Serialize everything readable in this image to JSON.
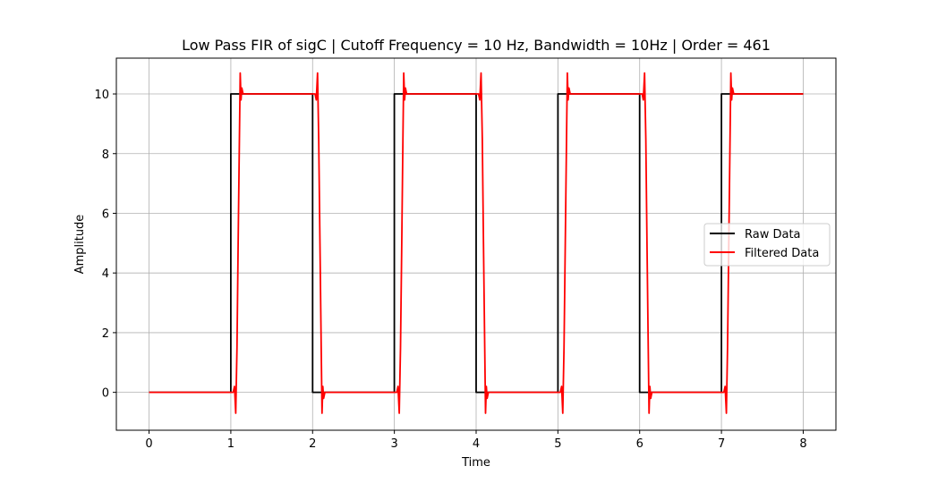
{
  "chart_data": {
    "type": "line",
    "title": "Low Pass FIR of sigC | Cutoff Frequency = 10 Hz, Bandwidth = 10Hz | Order = 461",
    "xlabel": "Time",
    "ylabel": "Amplitude",
    "xlim": [
      -0.4,
      8.4
    ],
    "ylim": [
      -1.27,
      11.2
    ],
    "xticks": [
      0,
      1,
      2,
      3,
      4,
      5,
      6,
      7,
      8
    ],
    "xtick_labels": [
      "0",
      "1",
      "2",
      "3",
      "4",
      "5",
      "6",
      "7",
      "8"
    ],
    "yticks": [
      0,
      2,
      4,
      6,
      8,
      10
    ],
    "ytick_labels": [
      "0",
      "2",
      "4",
      "6",
      "8",
      "10"
    ],
    "grid": true,
    "legend_position": "center-right",
    "series": [
      {
        "name": "Raw Data",
        "color": "#000000",
        "x": [
          0,
          1,
          1,
          2,
          2,
          3,
          3,
          4,
          4,
          5,
          5,
          6,
          6,
          7,
          7,
          8
        ],
        "y": [
          0,
          0,
          10,
          10,
          0,
          0,
          10,
          10,
          0,
          0,
          10,
          10,
          0,
          0,
          10,
          10
        ]
      },
      {
        "name": "Filtered Data",
        "color": "#ff0000",
        "x": [
          0,
          1.0,
          1.03,
          1.045,
          1.06,
          1.075,
          1.09,
          1.105,
          1.115,
          1.125,
          1.135,
          1.15,
          2.0,
          2.03,
          2.045,
          2.06,
          2.075,
          2.09,
          2.105,
          2.115,
          2.125,
          2.135,
          2.15,
          3.0,
          3.03,
          3.045,
          3.06,
          3.075,
          3.09,
          3.105,
          3.115,
          3.125,
          3.135,
          3.15,
          4.0,
          4.03,
          4.045,
          4.06,
          4.075,
          4.09,
          4.105,
          4.115,
          4.125,
          4.135,
          4.15,
          5.0,
          5.03,
          5.045,
          5.06,
          5.075,
          5.09,
          5.105,
          5.115,
          5.125,
          5.135,
          5.15,
          6.0,
          6.03,
          6.045,
          6.06,
          6.075,
          6.09,
          6.105,
          6.115,
          6.125,
          6.135,
          6.15,
          7.0,
          7.03,
          7.045,
          7.06,
          7.075,
          7.09,
          7.105,
          7.115,
          7.125,
          7.135,
          7.15,
          8.0
        ],
        "y": [
          0,
          0,
          0.0,
          0.2,
          -0.7,
          1.5,
          5.0,
          8.5,
          10.7,
          9.8,
          10.2,
          10,
          10,
          10.0,
          9.8,
          10.7,
          8.5,
          5.0,
          1.5,
          -0.7,
          0.2,
          -0.2,
          0,
          0,
          0.0,
          0.2,
          -0.7,
          1.5,
          5.0,
          8.5,
          10.7,
          9.8,
          10.2,
          10,
          10,
          10.0,
          9.8,
          10.7,
          8.5,
          5.0,
          1.5,
          -0.7,
          0.2,
          -0.2,
          0,
          0,
          0.0,
          0.2,
          -0.7,
          1.5,
          5.0,
          8.5,
          10.7,
          9.8,
          10.2,
          10,
          10,
          10.0,
          9.8,
          10.7,
          8.5,
          5.0,
          1.5,
          -0.7,
          0.2,
          -0.2,
          0,
          0,
          0.0,
          0.2,
          -0.7,
          1.5,
          5.0,
          8.5,
          10.7,
          9.8,
          10.2,
          10,
          10
        ]
      }
    ]
  }
}
